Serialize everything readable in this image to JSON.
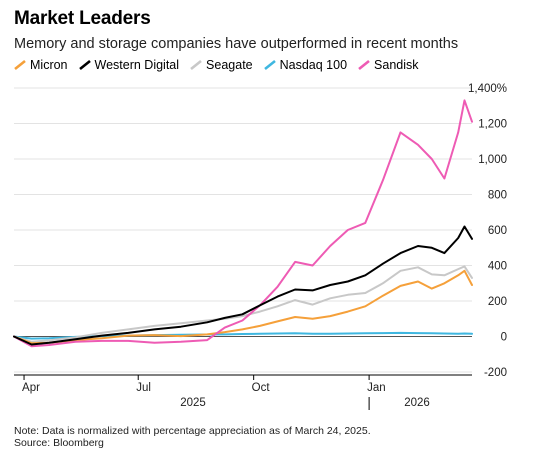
{
  "title": "Market Leaders",
  "subtitle": "Memory and storage companies have outperformed in recent months",
  "note": "Note: Data is normalized with percentage appreciation as of March 24, 2025.",
  "source": "Source: Bloomberg",
  "chart_data": {
    "type": "line",
    "title": "Market Leaders",
    "subtitle": "Memory and storage companies have outperformed in recent months",
    "ylim": [
      -200,
      1400
    ],
    "y_ticks": [
      -200,
      0,
      200,
      400,
      600,
      800,
      1000,
      1200,
      1400
    ],
    "y_tick_labels": [
      "-200",
      "0",
      "200",
      "400",
      "600",
      "800",
      "1,000",
      "1,200",
      "1,400%"
    ],
    "y_axis_position": "right",
    "x_range": [
      "2025-03-24",
      "2026-03-24"
    ],
    "x_ticks": [
      {
        "label": "Apr",
        "date": "2025-04-01"
      },
      {
        "label": "Jul",
        "date": "2025-07-01"
      },
      {
        "label": "Oct",
        "date": "2025-10-01"
      },
      {
        "label": "Jan",
        "date": "2026-01-01"
      }
    ],
    "year_labels": [
      "2025",
      "2026"
    ],
    "grid": true,
    "legend_position": "top",
    "series": [
      {
        "name": "Micron",
        "color": "#f5a03a",
        "points": [
          [
            "2025-03-24",
            0
          ],
          [
            "2025-04-07",
            -38
          ],
          [
            "2025-04-21",
            -35
          ],
          [
            "2025-05-12",
            -20
          ],
          [
            "2025-06-02",
            -10
          ],
          [
            "2025-06-23",
            5
          ],
          [
            "2025-07-14",
            8
          ],
          [
            "2025-08-04",
            2
          ],
          [
            "2025-08-25",
            12
          ],
          [
            "2025-09-08",
            25
          ],
          [
            "2025-09-22",
            40
          ],
          [
            "2025-10-06",
            60
          ],
          [
            "2025-10-20",
            85
          ],
          [
            "2025-11-03",
            110
          ],
          [
            "2025-11-17",
            100
          ],
          [
            "2025-12-01",
            115
          ],
          [
            "2025-12-15",
            140
          ],
          [
            "2025-12-29",
            170
          ],
          [
            "2026-01-12",
            230
          ],
          [
            "2026-01-26",
            285
          ],
          [
            "2026-02-09",
            310
          ],
          [
            "2026-02-20",
            270
          ],
          [
            "2026-03-02",
            300
          ],
          [
            "2026-03-13",
            345
          ],
          [
            "2026-03-18",
            370
          ],
          [
            "2026-03-24",
            290
          ]
        ]
      },
      {
        "name": "Western Digital",
        "color": "#000000",
        "points": [
          [
            "2025-03-24",
            0
          ],
          [
            "2025-04-07",
            -45
          ],
          [
            "2025-04-21",
            -35
          ],
          [
            "2025-05-12",
            -15
          ],
          [
            "2025-06-02",
            5
          ],
          [
            "2025-06-23",
            20
          ],
          [
            "2025-07-14",
            40
          ],
          [
            "2025-08-04",
            55
          ],
          [
            "2025-08-25",
            80
          ],
          [
            "2025-09-08",
            105
          ],
          [
            "2025-09-22",
            125
          ],
          [
            "2025-10-06",
            175
          ],
          [
            "2025-10-20",
            225
          ],
          [
            "2025-11-03",
            265
          ],
          [
            "2025-11-17",
            260
          ],
          [
            "2025-12-01",
            290
          ],
          [
            "2025-12-15",
            310
          ],
          [
            "2025-12-29",
            345
          ],
          [
            "2026-01-12",
            410
          ],
          [
            "2026-01-26",
            470
          ],
          [
            "2026-02-09",
            510
          ],
          [
            "2026-02-20",
            500
          ],
          [
            "2026-03-02",
            470
          ],
          [
            "2026-03-13",
            555
          ],
          [
            "2026-03-18",
            620
          ],
          [
            "2026-03-24",
            550
          ]
        ]
      },
      {
        "name": "Seagate",
        "color": "#c8c8c8",
        "points": [
          [
            "2025-03-24",
            0
          ],
          [
            "2025-04-07",
            -30
          ],
          [
            "2025-04-21",
            -22
          ],
          [
            "2025-05-12",
            -5
          ],
          [
            "2025-06-02",
            20
          ],
          [
            "2025-06-23",
            40
          ],
          [
            "2025-07-14",
            60
          ],
          [
            "2025-08-04",
            75
          ],
          [
            "2025-08-25",
            90
          ],
          [
            "2025-09-08",
            100
          ],
          [
            "2025-09-22",
            115
          ],
          [
            "2025-10-06",
            140
          ],
          [
            "2025-10-20",
            170
          ],
          [
            "2025-11-03",
            205
          ],
          [
            "2025-11-17",
            180
          ],
          [
            "2025-12-01",
            215
          ],
          [
            "2025-12-15",
            235
          ],
          [
            "2025-12-29",
            245
          ],
          [
            "2026-01-12",
            300
          ],
          [
            "2026-01-26",
            370
          ],
          [
            "2026-02-09",
            390
          ],
          [
            "2026-02-20",
            350
          ],
          [
            "2026-03-02",
            345
          ],
          [
            "2026-03-13",
            380
          ],
          [
            "2026-03-18",
            395
          ],
          [
            "2026-03-24",
            330
          ]
        ]
      },
      {
        "name": "Nasdaq 100",
        "color": "#3fb7e0",
        "points": [
          [
            "2025-03-24",
            0
          ],
          [
            "2025-04-07",
            -12
          ],
          [
            "2025-04-21",
            -10
          ],
          [
            "2025-05-12",
            -2
          ],
          [
            "2025-06-02",
            2
          ],
          [
            "2025-06-23",
            5
          ],
          [
            "2025-07-14",
            8
          ],
          [
            "2025-08-04",
            10
          ],
          [
            "2025-08-25",
            11
          ],
          [
            "2025-09-08",
            12
          ],
          [
            "2025-09-22",
            14
          ],
          [
            "2025-10-06",
            15
          ],
          [
            "2025-10-20",
            17
          ],
          [
            "2025-11-03",
            18
          ],
          [
            "2025-11-17",
            15
          ],
          [
            "2025-12-01",
            16
          ],
          [
            "2025-12-15",
            17
          ],
          [
            "2025-12-29",
            18
          ],
          [
            "2026-01-12",
            19
          ],
          [
            "2026-01-26",
            20
          ],
          [
            "2026-02-09",
            19
          ],
          [
            "2026-02-20",
            18
          ],
          [
            "2026-03-02",
            17
          ],
          [
            "2026-03-13",
            16
          ],
          [
            "2026-03-18",
            17
          ],
          [
            "2026-03-24",
            15
          ]
        ]
      },
      {
        "name": "Sandisk",
        "color": "#ee5bb4",
        "points": [
          [
            "2025-03-24",
            0
          ],
          [
            "2025-04-07",
            -55
          ],
          [
            "2025-04-21",
            -48
          ],
          [
            "2025-05-12",
            -30
          ],
          [
            "2025-06-02",
            -25
          ],
          [
            "2025-06-23",
            -25
          ],
          [
            "2025-07-14",
            -35
          ],
          [
            "2025-08-04",
            -30
          ],
          [
            "2025-08-25",
            -20
          ],
          [
            "2025-09-08",
            50
          ],
          [
            "2025-09-22",
            90
          ],
          [
            "2025-10-06",
            175
          ],
          [
            "2025-10-20",
            280
          ],
          [
            "2025-11-03",
            420
          ],
          [
            "2025-11-17",
            400
          ],
          [
            "2025-12-01",
            510
          ],
          [
            "2025-12-15",
            600
          ],
          [
            "2025-12-29",
            640
          ],
          [
            "2026-01-12",
            880
          ],
          [
            "2026-01-26",
            1150
          ],
          [
            "2026-02-09",
            1080
          ],
          [
            "2026-02-20",
            1000
          ],
          [
            "2026-03-02",
            890
          ],
          [
            "2026-03-13",
            1150
          ],
          [
            "2026-03-18",
            1330
          ],
          [
            "2026-03-24",
            1210
          ]
        ]
      }
    ]
  }
}
